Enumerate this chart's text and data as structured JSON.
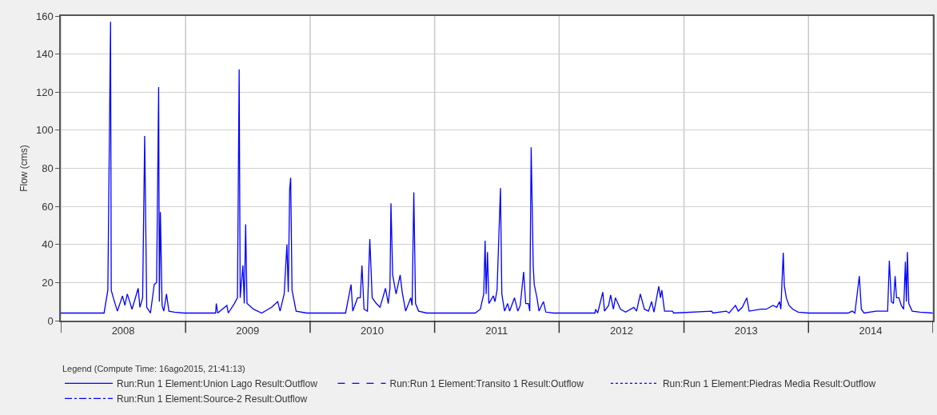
{
  "chart_data": {
    "type": "line",
    "ylabel": "Flow (cms)",
    "legend_title": "Legend (Compute Time: 16ago2015, 21:41:13)",
    "legend": "bottom",
    "grid": true,
    "xlim": [
      "2008-01-01",
      "2015-01-01"
    ],
    "xticks": [
      {
        "value": "2008-01-01",
        "label": null
      },
      {
        "value": "2008-07-02",
        "label": "2008"
      },
      {
        "value": "2009-01-01",
        "label": null
      },
      {
        "value": "2009-07-02",
        "label": "2009"
      },
      {
        "value": "2010-01-01",
        "label": null
      },
      {
        "value": "2010-07-02",
        "label": "2010"
      },
      {
        "value": "2011-01-01",
        "label": null
      },
      {
        "value": "2011-07-02",
        "label": "2011"
      },
      {
        "value": "2012-01-01",
        "label": null
      },
      {
        "value": "2012-07-02",
        "label": "2012"
      },
      {
        "value": "2013-01-01",
        "label": null
      },
      {
        "value": "2013-07-02",
        "label": "2013"
      },
      {
        "value": "2014-01-01",
        "label": null
      },
      {
        "value": "2014-07-02",
        "label": "2014"
      },
      {
        "value": "2015-01-01",
        "label": null
      }
    ],
    "ylim": [
      0,
      160
    ],
    "yticks": [
      0,
      20,
      40,
      60,
      80,
      100,
      120,
      140,
      160
    ],
    "series": [
      {
        "name": "Run:Run 1 Element:Union Lago Result:Outflow",
        "color": "#0000ff",
        "line_style": "solid",
        "x": [
          "2008-01-01",
          "2008-05-07",
          "2008-05-18",
          "2008-05-26",
          "2008-05-28",
          "2008-06-03",
          "2008-06-15",
          "2008-06-30",
          "2008-07-07",
          "2008-07-14",
          "2008-07-28",
          "2008-08-15",
          "2008-08-20",
          "2008-08-28",
          "2008-09-03",
          "2008-09-09",
          "2008-09-20",
          "2008-10-01",
          "2008-10-08",
          "2008-10-14",
          "2008-10-16",
          "2008-10-19",
          "2008-10-24",
          "2008-10-29",
          "2008-11-06",
          "2008-11-13",
          "2008-11-29",
          "2008-12-27",
          "2009-03-30",
          "2009-04-01",
          "2009-04-05",
          "2009-05-02",
          "2009-05-06",
          "2009-05-24",
          "2009-06-02",
          "2009-06-07",
          "2009-06-10",
          "2009-06-18",
          "2009-06-22",
          "2009-06-26",
          "2009-06-30",
          "2009-07-19",
          "2009-08-12",
          "2009-09-10",
          "2009-09-28",
          "2009-10-05",
          "2009-10-17",
          "2009-10-25",
          "2009-10-29",
          "2009-11-02",
          "2009-11-05",
          "2009-11-09",
          "2009-11-21",
          "2009-12-22",
          "2010-04-15",
          "2010-05-01",
          "2010-05-06",
          "2010-05-20",
          "2010-05-28",
          "2010-06-02",
          "2010-06-08",
          "2010-06-18",
          "2010-06-25",
          "2010-07-02",
          "2010-07-14",
          "2010-07-25",
          "2010-08-10",
          "2010-08-18",
          "2010-08-23",
          "2010-08-26",
          "2010-08-31",
          "2010-09-10",
          "2010-09-22",
          "2010-09-28",
          "2010-10-08",
          "2010-10-23",
          "2010-10-27",
          "2010-11-01",
          "2010-11-06",
          "2010-11-15",
          "2010-12-09",
          "2011-04-30",
          "2011-05-15",
          "2011-05-25",
          "2011-05-29",
          "2011-06-01",
          "2011-06-05",
          "2011-06-09",
          "2011-06-22",
          "2011-06-27",
          "2011-07-03",
          "2011-07-13",
          "2011-07-17",
          "2011-07-25",
          "2011-08-03",
          "2011-08-09",
          "2011-08-23",
          "2011-09-02",
          "2011-09-09",
          "2011-09-19",
          "2011-09-25",
          "2011-10-03",
          "2011-10-07",
          "2011-10-11",
          "2011-10-17",
          "2011-10-20",
          "2011-10-28",
          "2011-11-03",
          "2011-11-16",
          "2011-11-23",
          "2011-12-16",
          "2012-04-15",
          "2012-04-17",
          "2012-04-23",
          "2012-05-08",
          "2012-05-13",
          "2012-05-25",
          "2012-05-31",
          "2012-06-08",
          "2012-06-14",
          "2012-06-29",
          "2012-07-14",
          "2012-08-07",
          "2012-08-15",
          "2012-08-26",
          "2012-09-07",
          "2012-09-19",
          "2012-09-28",
          "2012-10-05",
          "2012-10-19",
          "2012-10-24",
          "2012-10-28",
          "2012-11-05",
          "2012-11-28",
          "2012-12-02",
          "2013-03-23",
          "2013-03-27",
          "2013-05-05",
          "2013-05-13",
          "2013-06-01",
          "2013-06-09",
          "2013-06-21",
          "2013-07-04",
          "2013-07-11",
          "2013-08-15",
          "2013-08-30",
          "2013-09-19",
          "2013-09-30",
          "2013-10-08",
          "2013-10-12",
          "2013-10-19",
          "2013-10-22",
          "2013-10-28",
          "2013-11-05",
          "2013-11-16",
          "2013-12-02",
          "2013-12-31",
          "2014-04-27",
          "2014-05-09",
          "2014-05-17",
          "2014-05-30",
          "2014-06-05",
          "2014-06-13",
          "2014-07-18",
          "2014-08-07",
          "2014-08-21",
          "2014-08-26",
          "2014-09-01",
          "2014-09-07",
          "2014-09-12",
          "2014-09-16",
          "2014-09-23",
          "2014-09-30",
          "2014-10-07",
          "2014-10-12",
          "2014-10-15",
          "2014-10-18",
          "2014-10-22",
          "2014-11-01",
          "2014-11-24",
          "2014-12-31"
        ],
        "values": [
          4,
          4,
          16,
          157,
          16,
          12,
          5,
          13,
          8,
          14,
          6,
          17,
          7,
          12,
          97,
          7,
          4,
          19,
          20,
          122.6,
          10,
          57,
          8,
          5,
          14,
          5,
          4.5,
          4,
          4,
          9,
          4,
          8,
          4,
          9,
          12,
          132,
          12,
          29,
          9,
          50.6,
          9,
          6,
          4,
          7,
          10,
          5,
          14,
          40,
          15,
          69,
          75,
          16,
          5,
          4,
          4,
          19,
          5,
          12,
          12,
          29,
          6,
          5,
          42.8,
          12,
          9,
          7,
          17,
          9,
          17,
          61.6,
          24,
          14,
          24,
          15,
          5,
          12,
          8,
          67.4,
          9,
          5,
          4,
          4,
          6,
          14,
          42,
          14,
          36,
          9,
          13,
          10,
          16,
          69.6,
          14,
          5,
          9,
          5,
          12,
          5,
          8,
          25.6,
          9,
          9,
          5,
          91,
          29,
          19,
          12,
          5,
          10,
          4.5,
          4,
          4,
          6,
          4,
          15,
          5,
          8,
          13.5,
          6,
          12,
          6,
          4.5,
          7,
          5,
          14,
          6,
          5,
          10,
          4.5,
          18,
          12,
          16,
          5,
          5,
          4,
          5,
          4,
          5,
          4,
          8,
          5,
          7,
          12,
          5,
          6,
          6,
          8,
          7,
          10,
          6,
          35.7,
          18.5,
          12,
          8,
          6,
          4.5,
          4,
          4,
          5,
          4,
          23.4,
          6,
          4,
          5,
          5,
          5,
          31.5,
          10,
          9,
          23.4,
          12,
          12,
          8,
          6,
          31,
          10,
          36,
          9,
          5,
          4.5,
          4
        ]
      },
      {
        "name": "Run:Run 1 Element:Transito 1 Result:Outflow",
        "color": "#0000ff",
        "line_style": "dashed"
      },
      {
        "name": "Run:Run 1 Element:Piedras Media Result:Outflow",
        "color": "#0000ff",
        "line_style": "dotted"
      },
      {
        "name": "Run:Run 1 Element:Source-2 Result:Outflow",
        "color": "#0000ff",
        "line_style": "dashdot"
      }
    ]
  }
}
